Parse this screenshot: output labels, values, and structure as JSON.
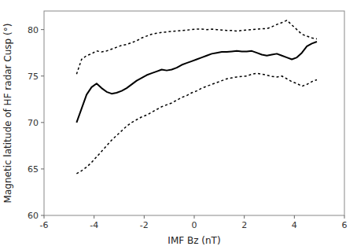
{
  "chart_data": {
    "type": "line",
    "xlabel": "IMF Bz  (nT)",
    "ylabel": "Magnetic latitude of HF radar Cusp (°)",
    "xlim": [
      -6,
      6
    ],
    "ylim": [
      60,
      82
    ],
    "xticks": [
      -6,
      -4,
      -2,
      0,
      2,
      4,
      6
    ],
    "yticks": [
      60,
      65,
      70,
      75,
      80
    ],
    "x": [
      -4.7,
      -4.5,
      -4.3,
      -4.1,
      -3.9,
      -3.7,
      -3.5,
      -3.3,
      -3.1,
      -2.9,
      -2.7,
      -2.5,
      -2.3,
      -2.1,
      -1.9,
      -1.7,
      -1.5,
      -1.3,
      -1.1,
      -0.9,
      -0.7,
      -0.5,
      -0.3,
      -0.1,
      0.1,
      0.3,
      0.5,
      0.7,
      0.9,
      1.1,
      1.3,
      1.5,
      1.7,
      1.9,
      2.1,
      2.3,
      2.5,
      2.7,
      2.9,
      3.1,
      3.3,
      3.5,
      3.7,
      3.9,
      4.1,
      4.3,
      4.5,
      4.7,
      4.9
    ],
    "series": [
      {
        "color": "#000000",
        "line_style": "dotted",
        "values": [
          75.2,
          76.8,
          77.2,
          77.4,
          77.7,
          77.6,
          77.7,
          77.9,
          78.1,
          78.3,
          78.4,
          78.6,
          78.8,
          79.1,
          79.3,
          79.5,
          79.6,
          79.7,
          79.75,
          79.8,
          79.85,
          79.9,
          79.95,
          80.0,
          80.05,
          80.05,
          80.0,
          80.05,
          80.0,
          79.95,
          79.9,
          79.9,
          79.85,
          79.9,
          79.95,
          80.0,
          80.05,
          80.1,
          80.1,
          80.3,
          80.55,
          80.75,
          81.0,
          80.5,
          80.0,
          79.5,
          79.3,
          79.1,
          79.0
        ]
      },
      {
        "color": "#000000",
        "line_style": "dotted",
        "values": [
          64.5,
          64.8,
          65.2,
          65.7,
          66.3,
          66.9,
          67.5,
          68.1,
          68.6,
          69.1,
          69.6,
          70.0,
          70.3,
          70.6,
          70.8,
          71.1,
          71.4,
          71.7,
          71.9,
          72.1,
          72.4,
          72.7,
          72.9,
          73.2,
          73.4,
          73.7,
          73.9,
          74.1,
          74.3,
          74.5,
          74.7,
          74.8,
          74.9,
          74.95,
          75.0,
          75.2,
          75.3,
          75.2,
          75.1,
          74.95,
          74.9,
          75.0,
          74.7,
          74.4,
          74.2,
          73.9,
          74.1,
          74.4,
          74.6
        ]
      },
      {
        "color": "#000000",
        "line_style": "solid",
        "values": [
          70.0,
          71.5,
          73.0,
          73.8,
          74.2,
          73.7,
          73.3,
          73.1,
          73.2,
          73.4,
          73.7,
          74.1,
          74.5,
          74.8,
          75.1,
          75.3,
          75.5,
          75.7,
          75.6,
          75.7,
          75.9,
          76.2,
          76.4,
          76.6,
          76.8,
          77.0,
          77.2,
          77.4,
          77.5,
          77.6,
          77.6,
          77.65,
          77.7,
          77.65,
          77.65,
          77.7,
          77.5,
          77.3,
          77.2,
          77.3,
          77.4,
          77.2,
          77.0,
          76.8,
          77.0,
          77.5,
          78.2,
          78.5,
          78.7
        ]
      }
    ]
  }
}
